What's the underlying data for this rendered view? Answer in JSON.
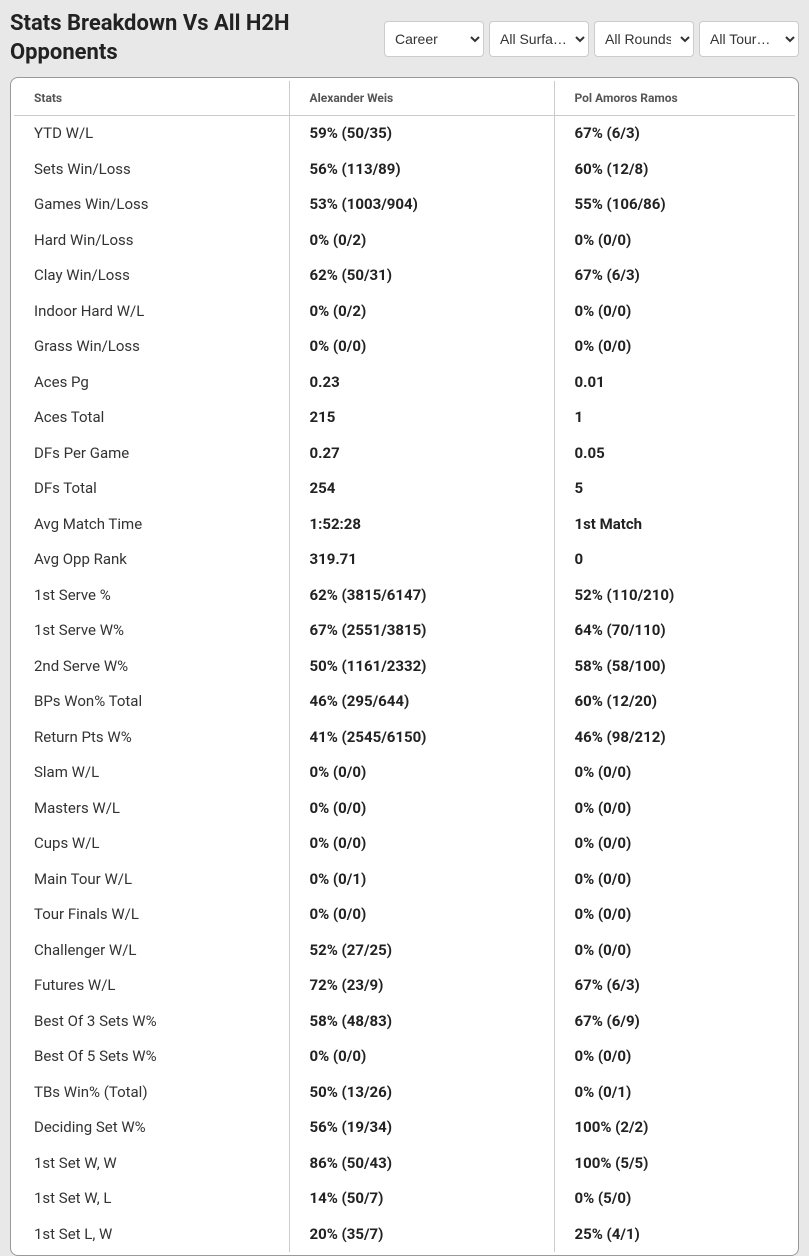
{
  "header": {
    "title": "Stats Breakdown Vs All H2H Opponents"
  },
  "filters": {
    "career": {
      "selected": "Career",
      "options": [
        "Career"
      ]
    },
    "surface": {
      "selected": "All Surfa…",
      "options": [
        "All Surfa…"
      ]
    },
    "round": {
      "selected": "All Rounds",
      "options": [
        "All Rounds"
      ]
    },
    "tournament": {
      "selected": "All Tour…",
      "options": [
        "All Tour…"
      ]
    }
  },
  "table": {
    "columns": [
      "Stats",
      "Alexander Weis",
      "Pol Amoros Ramos"
    ],
    "rows": [
      [
        "YTD W/L",
        "59% (50/35)",
        "67% (6/3)"
      ],
      [
        "Sets Win/Loss",
        "56% (113/89)",
        "60% (12/8)"
      ],
      [
        "Games Win/Loss",
        "53% (1003/904)",
        "55% (106/86)"
      ],
      [
        "Hard Win/Loss",
        "0% (0/2)",
        "0% (0/0)"
      ],
      [
        "Clay Win/Loss",
        "62% (50/31)",
        "67% (6/3)"
      ],
      [
        "Indoor Hard W/L",
        "0% (0/2)",
        "0% (0/0)"
      ],
      [
        "Grass Win/Loss",
        "0% (0/0)",
        "0% (0/0)"
      ],
      [
        "Aces Pg",
        "0.23",
        "0.01"
      ],
      [
        "Aces Total",
        "215",
        "1"
      ],
      [
        "DFs Per Game",
        "0.27",
        "0.05"
      ],
      [
        "DFs Total",
        "254",
        "5"
      ],
      [
        "Avg Match Time",
        "1:52:28",
        "1st Match"
      ],
      [
        "Avg Opp Rank",
        "319.71",
        "0"
      ],
      [
        "1st Serve %",
        "62% (3815/6147)",
        "52% (110/210)"
      ],
      [
        "1st Serve W%",
        "67% (2551/3815)",
        "64% (70/110)"
      ],
      [
        "2nd Serve W%",
        "50% (1161/2332)",
        "58% (58/100)"
      ],
      [
        "BPs Won% Total",
        "46% (295/644)",
        "60% (12/20)"
      ],
      [
        "Return Pts W%",
        "41% (2545/6150)",
        "46% (98/212)"
      ],
      [
        "Slam W/L",
        "0% (0/0)",
        "0% (0/0)"
      ],
      [
        "Masters W/L",
        "0% (0/0)",
        "0% (0/0)"
      ],
      [
        "Cups W/L",
        "0% (0/0)",
        "0% (0/0)"
      ],
      [
        "Main Tour W/L",
        "0% (0/1)",
        "0% (0/0)"
      ],
      [
        "Tour Finals W/L",
        "0% (0/0)",
        "0% (0/0)"
      ],
      [
        "Challenger W/L",
        "52% (27/25)",
        "0% (0/0)"
      ],
      [
        "Futures W/L",
        "72% (23/9)",
        "67% (6/3)"
      ],
      [
        "Best Of 3 Sets W%",
        "58% (48/83)",
        "67% (6/9)"
      ],
      [
        "Best Of 5 Sets W%",
        "0% (0/0)",
        "0% (0/0)"
      ],
      [
        "TBs Win% (Total)",
        "50% (13/26)",
        "0% (0/1)"
      ],
      [
        "Deciding Set W%",
        "56% (19/34)",
        "100% (2/2)"
      ],
      [
        "1st Set W, W",
        "86% (50/43)",
        "100% (5/5)"
      ],
      [
        "1st Set W, L",
        "14% (50/7)",
        "0% (5/0)"
      ],
      [
        "1st Set L, W",
        "20% (35/7)",
        "25% (4/1)"
      ]
    ]
  },
  "colors": {
    "background": "#e8e8e8",
    "table_bg": "#ffffff",
    "border": "#cccccc",
    "outer_border": "#999999",
    "text_primary": "#222222",
    "text_secondary": "#333333",
    "header_text": "#555555"
  }
}
